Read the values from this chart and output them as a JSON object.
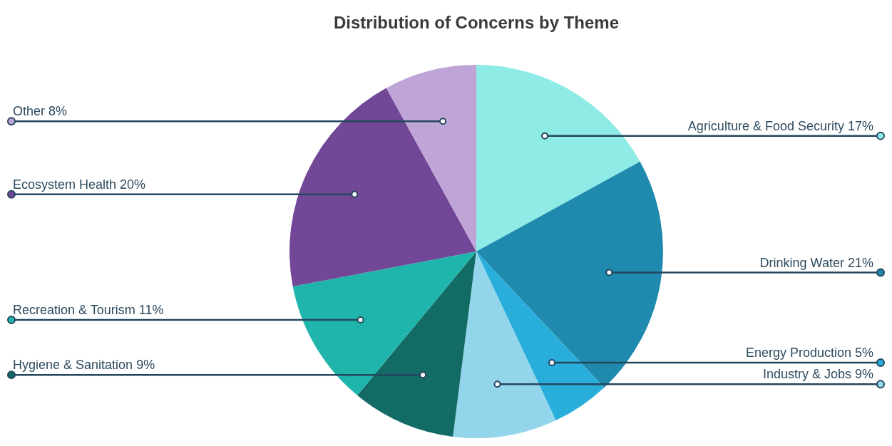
{
  "chart_data": {
    "type": "pie",
    "title": "Distribution of Concerns by Theme",
    "categories": [
      "Agriculture & Food Security",
      "Drinking Water",
      "Energy Production",
      "Industry & Jobs",
      "Hygiene & Sanitation",
      "Recreation & Tourism",
      "Ecosystem Health",
      "Other"
    ],
    "values": [
      17,
      21,
      5,
      9,
      9,
      11,
      20,
      8
    ],
    "colors": [
      "#8eebe6",
      "#1f8aad",
      "#29aedb",
      "#93d6ec",
      "#136b65",
      "#1fb5ad",
      "#724797",
      "#bfa5d7"
    ],
    "value_labels": [
      "17%",
      "21%",
      "5%",
      "9%",
      "9%",
      "11%",
      "20%",
      "8%"
    ]
  }
}
